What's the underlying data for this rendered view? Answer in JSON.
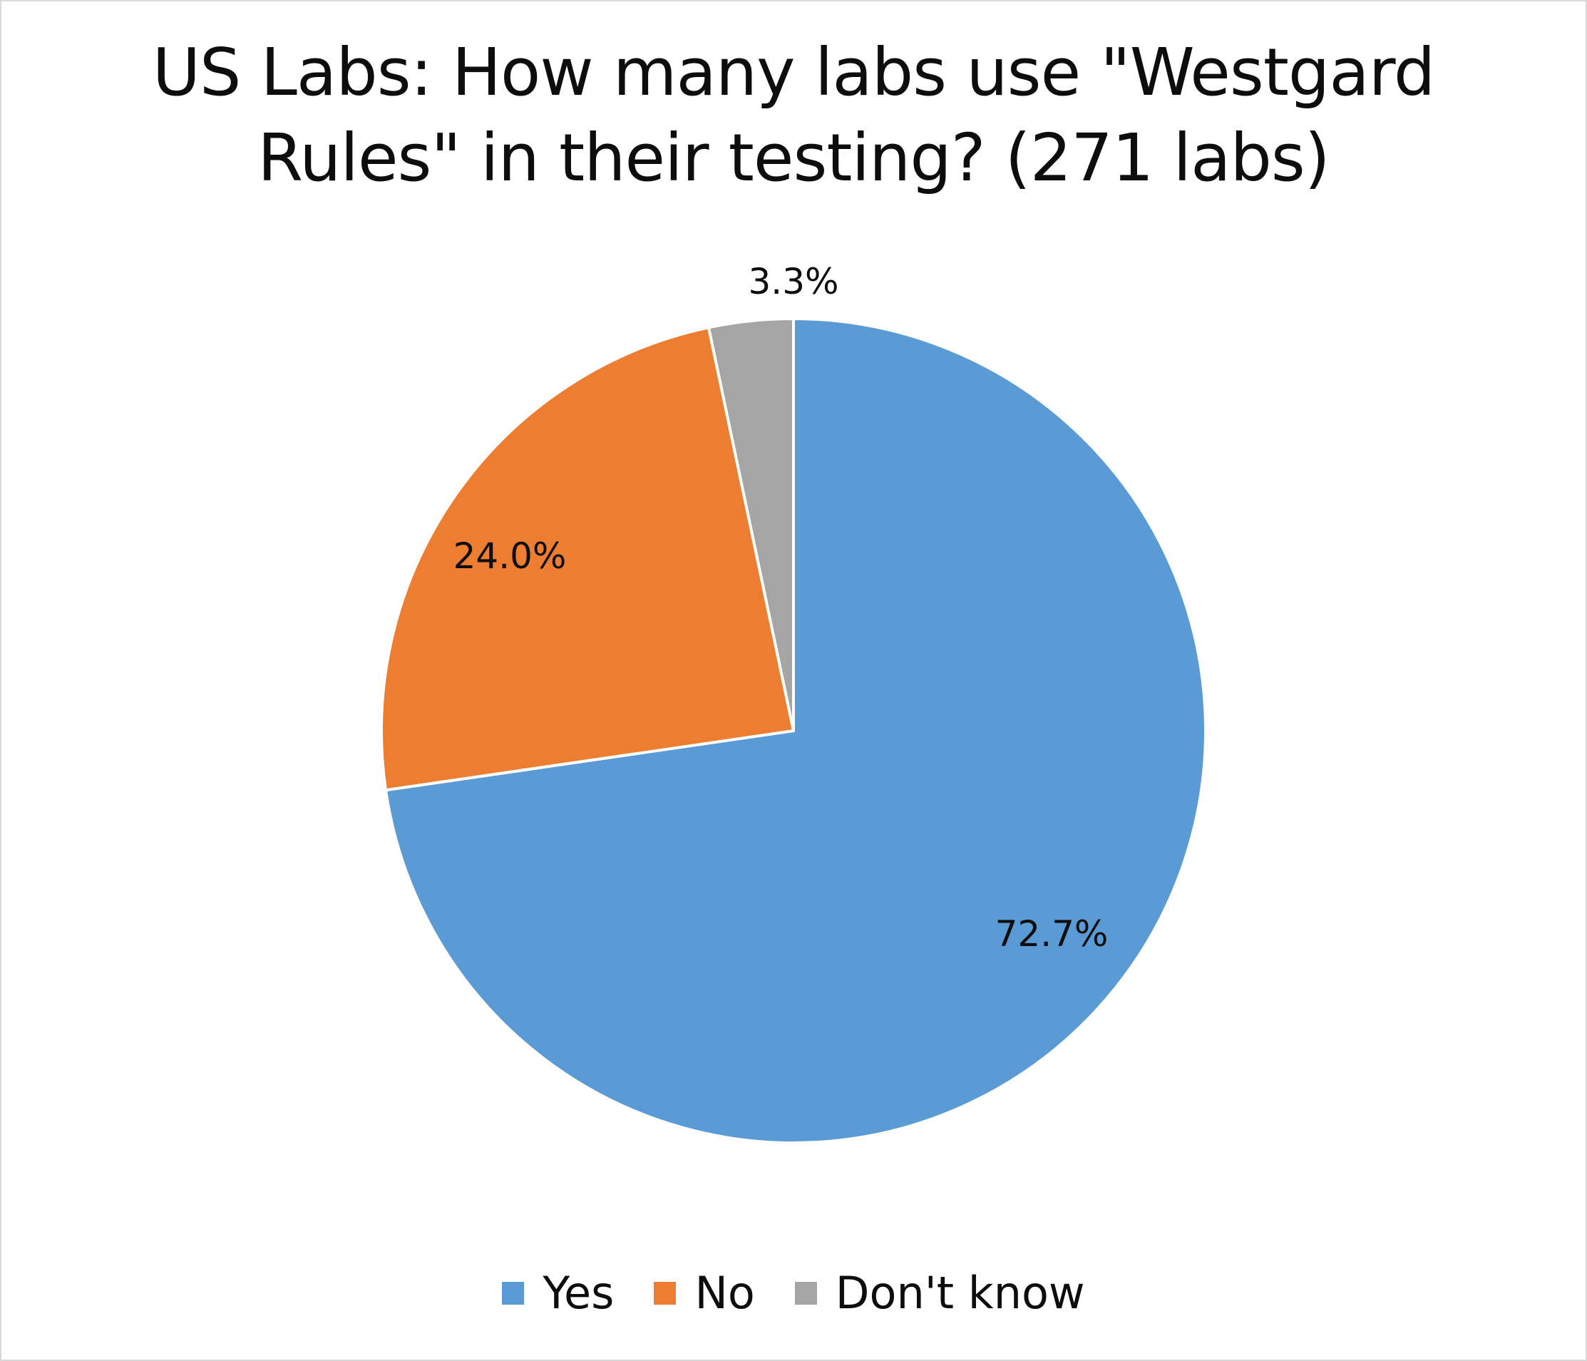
{
  "chart_data": {
    "type": "pie",
    "title": "US Labs: How many labs use \"Westgard Rules\" in their testing? (271 labs)",
    "title_lines": [
      "US Labs: How many labs use \"Westgard",
      "Rules\" in their testing? (271 labs)"
    ],
    "categories": [
      "Yes",
      "No",
      "Don't know"
    ],
    "values": [
      72.7,
      24.0,
      3.3
    ],
    "labels": [
      "72.7%",
      "24.0%",
      "3.3%"
    ],
    "colors": [
      "#5b9bd5",
      "#ed7d31",
      "#a5a5a5"
    ],
    "start_angle_deg": 0,
    "direction": "clockwise",
    "legend_position": "bottom",
    "total_labs": 271
  },
  "legend": {
    "items": [
      {
        "label": "Yes",
        "color": "#5b9bd5"
      },
      {
        "label": "No",
        "color": "#ed7d31"
      },
      {
        "label": "Don't know",
        "color": "#a5a5a5"
      }
    ]
  }
}
